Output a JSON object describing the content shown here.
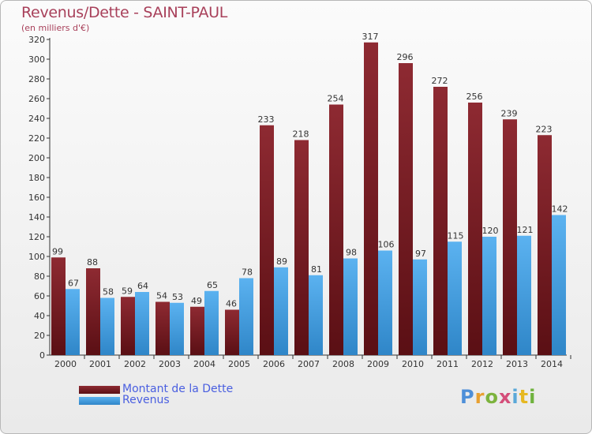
{
  "title": "Revenus/Dette - SAINT-PAUL",
  "subtitle": "(en milliers d'€)",
  "logo_text": "Proxiti",
  "chart_data": {
    "type": "bar",
    "title": "Revenus/Dette - SAINT-PAUL",
    "ylabel": "(en milliers d'€)",
    "xlabel": "",
    "ylim": [
      0,
      320
    ],
    "ytick_step": 20,
    "grid": false,
    "legend_position": "bottom-left",
    "categories": [
      "2000",
      "2001",
      "2002",
      "2003",
      "2004",
      "2005",
      "2006",
      "2007",
      "2008",
      "2009",
      "2010",
      "2011",
      "2012",
      "2013",
      "2014"
    ],
    "series": [
      {
        "name": "Montant de la Dette",
        "color": "#7a1e24",
        "values": [
          99,
          88,
          59,
          54,
          49,
          46,
          233,
          218,
          254,
          317,
          296,
          272,
          256,
          239,
          223
        ]
      },
      {
        "name": "Revenus",
        "color": "#3f9ee4",
        "values": [
          67,
          58,
          64,
          53,
          65,
          78,
          89,
          81,
          98,
          106,
          97,
          115,
          120,
          121,
          142
        ]
      }
    ]
  }
}
